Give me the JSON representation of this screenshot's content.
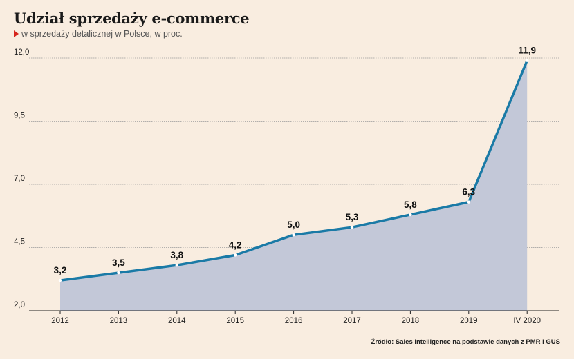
{
  "colors": {
    "background": "#f9ede0",
    "line": "#1a7aa6",
    "area": "#c3c8d8",
    "marker": "#d6241c"
  },
  "icons": {
    "subtitle_marker": "triangle-right-icon"
  },
  "chart_data": {
    "type": "area",
    "title": "Udział sprzedaży e-commerce",
    "subtitle": "w sprzedaży detalicznej w Polsce, w proc.",
    "categories": [
      "2012",
      "2013",
      "2014",
      "2015",
      "2016",
      "2017",
      "2018",
      "2019",
      "IV 2020"
    ],
    "values": [
      3.2,
      3.5,
      3.8,
      4.2,
      5.0,
      5.3,
      5.8,
      6.3,
      11.9
    ],
    "value_labels": [
      "3,2",
      "3,5",
      "3,8",
      "4,2",
      "5,0",
      "5,3",
      "5,8",
      "6,3",
      "11,9"
    ],
    "yticks": [
      2.0,
      4.5,
      7.0,
      9.5,
      12.0
    ],
    "ytick_labels": [
      "2,0",
      "4,5",
      "7,0",
      "9,5",
      "12,0"
    ],
    "ylim": [
      2.0,
      12.0
    ],
    "grid": true,
    "legend": "none",
    "source": "Źródło: Sales Intelligence na podstawie danych z PMR i GUS"
  }
}
